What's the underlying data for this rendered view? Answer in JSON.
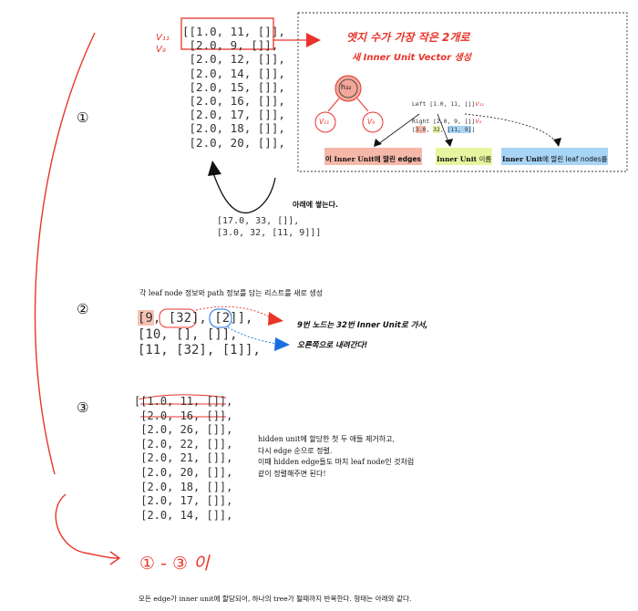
{
  "step_markers": [
    "①",
    "②",
    "③"
  ],
  "section1": {
    "var_labels": [
      "V₁₁",
      "V₉"
    ],
    "code_lines": [
      "[[1.0, 11, []],",
      " [2.0, 9, []],",
      " [2.0, 12, []],",
      " [2.0, 14, []],",
      " [2.0, 15, []],",
      " [2.0, 16, []],",
      " [2.0, 17, []],",
      " [2.0, 18, []],",
      " [2.0, 20, []],"
    ],
    "box": {
      "title_line1": "엣지 수가 가장 작은 2개로",
      "title_line2": "새 Inner Unit Vector 생성",
      "tree": {
        "root": "h₃₂",
        "left": "V₁₁",
        "right": "V₉"
      },
      "left_line": "Left [1.0, 11, []]",
      "left_tag": "V₁₁",
      "right_line": "Right [2.0, 9, []]",
      "right_tag": "V₉",
      "new_vec": {
        "a": "3.0",
        "b": "32",
        "c": "[11, 9]"
      },
      "label_edges_en": "이 Inner Unit",
      "label_edges_ko": "에 딸린 edges",
      "label_name_en": "Inner Unit",
      "label_name_ko": " 이름",
      "label_leaf_en": "Inner Unit",
      "label_leaf_ko": "에 딸린 leaf nodes를"
    },
    "stack_note": "아래에 쌓는다.",
    "bottom_lines": [
      "[17.0, 33, []],",
      "[3.0, 32, [11, 9]]]"
    ]
  },
  "section2": {
    "heading_en1": "각 leaf node",
    "heading_ko1": " 정보와 ",
    "heading_en2": "path",
    "heading_ko2": " 정보를 담는 리스트를 새로 생성",
    "code_lines": [
      "[9, [32], [2]],",
      "[10, [], []],",
      "[11, [32], [1]],"
    ],
    "hand_note_line1": "9번 노드는 32번 Inner Unit로 가서,",
    "hand_note_line2": "오른쪽으로 내려간다!"
  },
  "section3": {
    "code_lines": [
      "[[1.0, 11, []],",
      " [2.0, 16, []],",
      " [2.0, 26, []],",
      " [2.0, 22, []],",
      " [2.0, 21, []],",
      " [2.0, 20, []],",
      " [2.0, 18, []],",
      " [2.0, 17, []],",
      " [2.0, 14, []],"
    ],
    "note_lines": [
      "hidden unit에 할당한 첫 두 애들 제거하고,",
      "다시 edge 순으로 정렬.",
      "이때 hidden edge들도 마치 leaf node인 것처럼",
      "같이 정렬해주면 된다!"
    ]
  },
  "loop_note": "① - ③ 이",
  "footer": "모든 edge가 inner unit에 할당되어, 하나의 tree가 될때까지 반복한다. 형태는 아래와 같다.",
  "colors": {
    "red": "#e8342a",
    "blue": "#1a6fe0",
    "peach": "#f5b8a8",
    "yellow": "#e8f5a0",
    "lightblue": "#a8d4f5"
  }
}
